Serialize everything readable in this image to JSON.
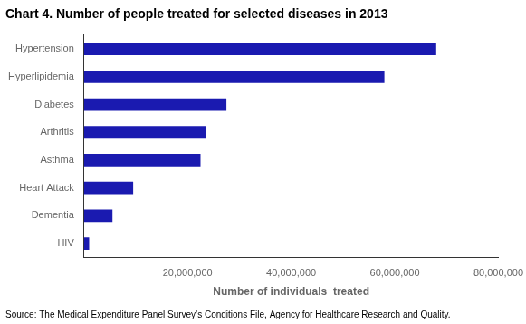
{
  "chart_data": {
    "type": "bar",
    "orientation": "horizontal",
    "title": "Chart 4. Number of people treated for selected diseases in 2013",
    "categories": [
      "HIV",
      "Dementia",
      "Heart Attack",
      "Asthma",
      "Arthritis",
      "Diabetes",
      "Hyperlipidemia",
      "Hypertension"
    ],
    "values": [
      1000000,
      5500000,
      9500000,
      22500000,
      23500000,
      27500000,
      58000000,
      68000000
    ],
    "color": "#1a1ab0",
    "xlabel": "Number of individuals  treated",
    "xlim": [
      0,
      80000000
    ],
    "xticks": [
      {
        "value": 20000000,
        "label": "20,000,000"
      },
      {
        "value": 40000000,
        "label": "40,000,000"
      },
      {
        "value": 60000000,
        "label": "60,000,000"
      },
      {
        "value": 80000000,
        "label": "80,000,000"
      }
    ],
    "source": "Source: The Medical Expenditure Panel Survey’s Conditions File, Agency for Healthcare Research and Quality.",
    "grid": false
  }
}
